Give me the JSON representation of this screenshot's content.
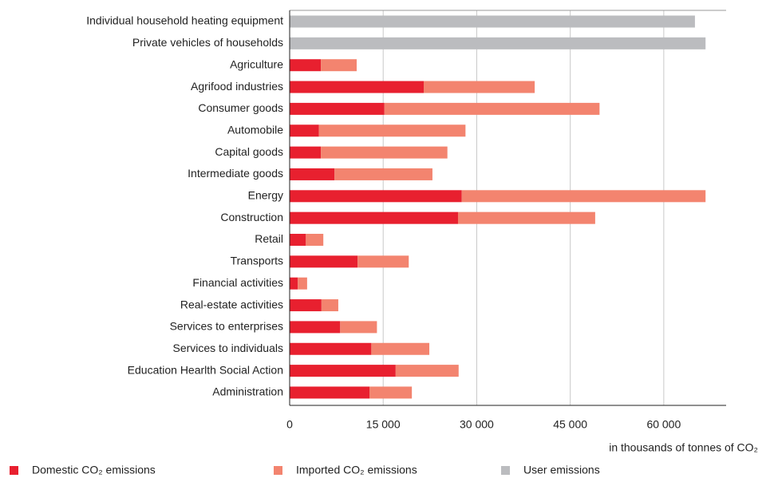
{
  "chart_data": {
    "type": "stacked-barh",
    "categories": [
      "Individual household heating equipment",
      "Private vehicles of households",
      "Agriculture",
      "Agrifood industries",
      "Consumer goods",
      "Automobile",
      "Capital goods",
      "Intermediate goods",
      "Energy",
      "Construction",
      "Retail",
      "Transports",
      "Financial activities",
      "Real-estate activities",
      "Services to enterprises",
      "Services to individuals",
      "Education Hearlth Social Action",
      "Administration"
    ],
    "series": [
      {
        "name": "Domestic CO₂ emissions",
        "color": "#e8202f",
        "values": [
          null,
          null,
          5000,
          21500,
          15200,
          4700,
          5000,
          7200,
          27600,
          27000,
          2600,
          10900,
          1300,
          5100,
          8100,
          13100,
          17000,
          12800
        ]
      },
      {
        "name": "Imported CO₂ emissions",
        "color": "#f3846f",
        "values": [
          null,
          null,
          5750,
          17800,
          34500,
          23500,
          20300,
          15700,
          39100,
          22000,
          2800,
          8200,
          1500,
          2700,
          5900,
          9300,
          10100,
          6800
        ]
      },
      {
        "name": "User emissions",
        "color": "#bbbcbf",
        "values": [
          65000,
          66700,
          null,
          null,
          null,
          null,
          null,
          null,
          null,
          null,
          null,
          null,
          null,
          null,
          null,
          null,
          null,
          null
        ]
      }
    ],
    "xlabel": "in thousands of tonnes of CO₂",
    "xlim": [
      0,
      70000
    ],
    "xticks": [
      0,
      {
        "value": 15000,
        "label": "15 000"
      },
      {
        "value": 30000,
        "label": "30 000"
      },
      {
        "value": 45000,
        "label": "45 000"
      },
      {
        "value": 60000,
        "label": "60 000"
      }
    ],
    "grid": true,
    "legend": "bottom"
  }
}
